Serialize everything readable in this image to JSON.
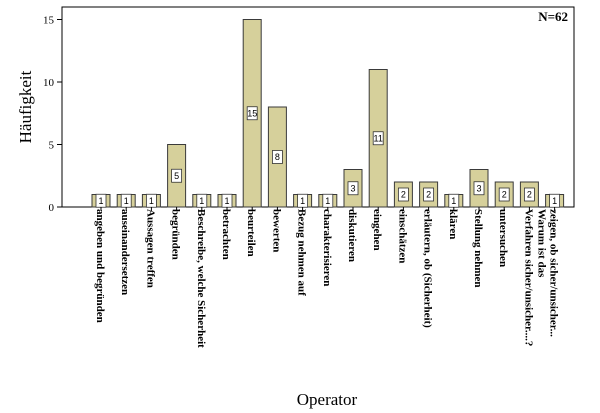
{
  "chart_data": {
    "type": "bar",
    "xlabel": "Operator",
    "ylabel": "Häufigkeit",
    "annotation": "N=62",
    "ylim": [
      0,
      16
    ],
    "yticks": [
      0,
      5,
      10,
      15
    ],
    "bar_color": "#d6d09b",
    "bar_edge_color": "#3a3a3a",
    "grid": false,
    "categories": [
      "angeben und begründen",
      "auseinandersetzen",
      "Aussagen treffen",
      "begründen",
      "Beschreibe, welche Sicherheit",
      "betrachten",
      "beurteilen",
      "bewerten",
      "Bezug nehmen auf",
      "charakterisieren",
      "diskutieren",
      "eingehen",
      "einschätzen",
      "erläutern, ob (Sicherheit)",
      "klären",
      "Stellung nehmen",
      "untersuchen",
      "Warum ist das Verfahren sicher/unsicher....?",
      "zeigen, ob sicher/unsicher..."
    ],
    "values": [
      1,
      1,
      1,
      5,
      1,
      1,
      15,
      8,
      1,
      1,
      3,
      11,
      2,
      2,
      1,
      3,
      2,
      2,
      1
    ]
  }
}
